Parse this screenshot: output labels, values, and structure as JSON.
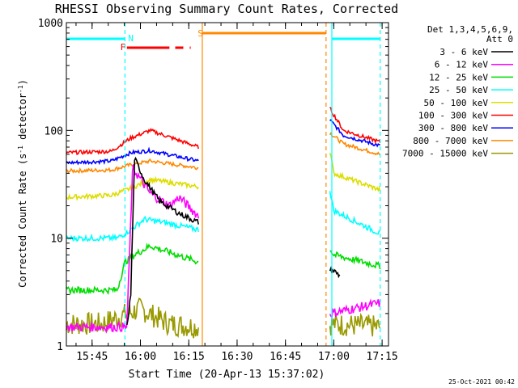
{
  "chart_data": {
    "type": "line",
    "title": "RHESSI Observing Summary Count Rates, Corrected",
    "xlabel": "Start Time (20-Apr-13 15:37:02)",
    "ylabel_main": "Corrected Count Rate (s",
    "ylabel_sup1": "-1",
    "ylabel_mid": " detector",
    "ylabel_sup2": "-1",
    "ylabel_end": ")",
    "yscale": "log",
    "ylim": [
      1,
      1000
    ],
    "xlim_minutes": [
      15.617,
      17.283
    ],
    "ytick_labels": [
      {
        "value": 1,
        "label": "1"
      },
      {
        "value": 10,
        "label": "10"
      },
      {
        "value": 100,
        "label": "100"
      },
      {
        "value": 1000,
        "label": "1000"
      }
    ],
    "xtick_labels": [
      {
        "value": 15.75,
        "label": "15:45"
      },
      {
        "value": 16.0,
        "label": "16:00"
      },
      {
        "value": 16.25,
        "label": "16:15"
      },
      {
        "value": 16.5,
        "label": "16:30"
      },
      {
        "value": 16.75,
        "label": "16:45"
      },
      {
        "value": 17.0,
        "label": "17:00"
      },
      {
        "value": 17.25,
        "label": "17:15"
      }
    ],
    "legend_header": [
      "Det 1,3,4,5,6,9,",
      "Att 0"
    ],
    "legend_position": "right",
    "series": [
      {
        "name": "3 - 6 keV",
        "color": "#000000"
      },
      {
        "name": "6 - 12 keV",
        "color": "#ff00ff"
      },
      {
        "name": "12 - 25 keV",
        "color": "#00dd00"
      },
      {
        "name": "25 - 50 keV",
        "color": "#00ffff"
      },
      {
        "name": "50 - 100 keV",
        "color": "#dddd00"
      },
      {
        "name": "100 - 300 keV",
        "color": "#ff0000"
      },
      {
        "name": "300 - 800 keV",
        "color": "#0000ff"
      },
      {
        "name": "800 - 7000 keV",
        "color": "#ff8800"
      },
      {
        "name": "7000 - 15000 keV",
        "color": "#999900"
      }
    ],
    "annotations": [
      {
        "label": "N",
        "color": "#00ffff"
      },
      {
        "label": "F",
        "color": "#ff0000"
      },
      {
        "label": "S",
        "color": "#ff8800"
      }
    ]
  },
  "footer": {
    "date_stamp": "25-Oct-2021 00:42"
  }
}
